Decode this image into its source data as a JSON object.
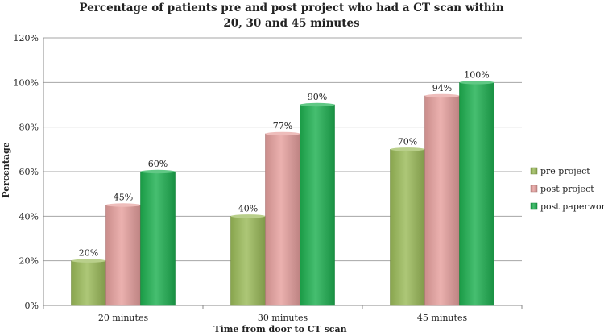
{
  "chart_data": {
    "type": "bar",
    "title": "Percentage of patients pre and post project who had a CT scan within",
    "subtitle": "20, 30 and 45 minutes",
    "xlabel": "Time from door to CT scan",
    "ylabel": "Percentage",
    "categories": [
      "20 minutes",
      "30 minutes",
      "45 minutes"
    ],
    "yticks": [
      "0%",
      "20%",
      "40%",
      "60%",
      "80%",
      "100%",
      "120%"
    ],
    "ylim": [
      0,
      120
    ],
    "grid": true,
    "legend_position": "right",
    "series": [
      {
        "name": "pre project",
        "values": [
          20,
          40,
          70
        ],
        "labels": [
          "20%",
          "40%",
          "70%"
        ],
        "color": "#9BBB59"
      },
      {
        "name": "post project",
        "values": [
          45,
          77,
          94
        ],
        "labels": [
          "45%",
          "77%",
          "94%"
        ],
        "color": "#E6A09E"
      },
      {
        "name": "post paperwork",
        "values": [
          60,
          90,
          100
        ],
        "labels": [
          "60%",
          "90%",
          "100%"
        ],
        "color": "#1DB050"
      }
    ]
  }
}
